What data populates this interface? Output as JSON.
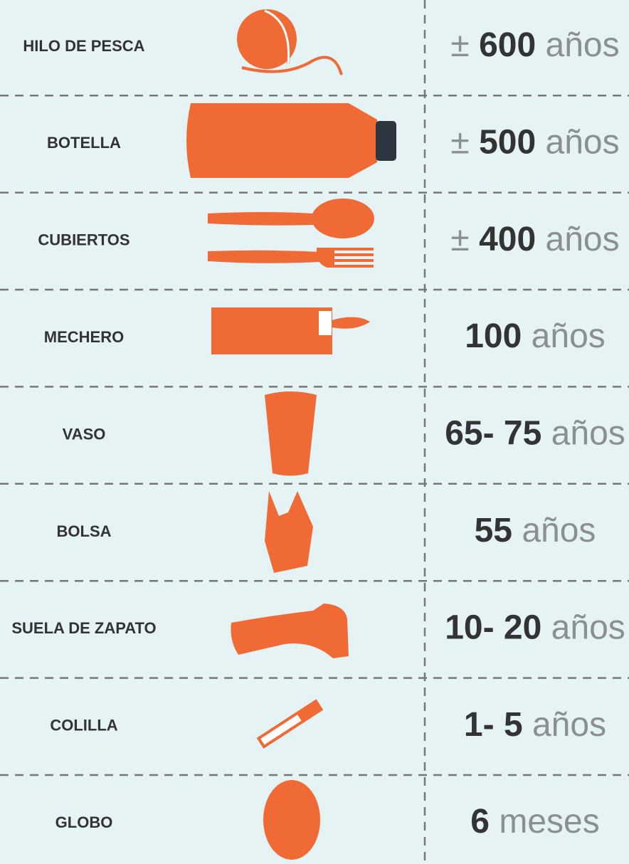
{
  "rows": [
    {
      "label": "HILO DE PESCA",
      "prefix": "±",
      "amount": "600",
      "unit": "años"
    },
    {
      "label": "BOTELLA",
      "prefix": "±",
      "amount": "500",
      "unit": "años"
    },
    {
      "label": "CUBIERTOS",
      "prefix": "±",
      "amount": "400",
      "unit": "años"
    },
    {
      "label": "MECHERO",
      "amount": "100",
      "unit": "años"
    },
    {
      "label": "VASO",
      "amount": "65- 75",
      "unit": "años"
    },
    {
      "label": "BOLSA",
      "amount": "55",
      "unit": "años"
    },
    {
      "label": "SUELA DE ZAPATO",
      "amount": "10- 20",
      "unit": "años"
    },
    {
      "label": "COLILLA",
      "amount": "1- 5",
      "unit": "años"
    },
    {
      "label": "GLOBO",
      "amount": "6",
      "unit": "meses"
    }
  ]
}
